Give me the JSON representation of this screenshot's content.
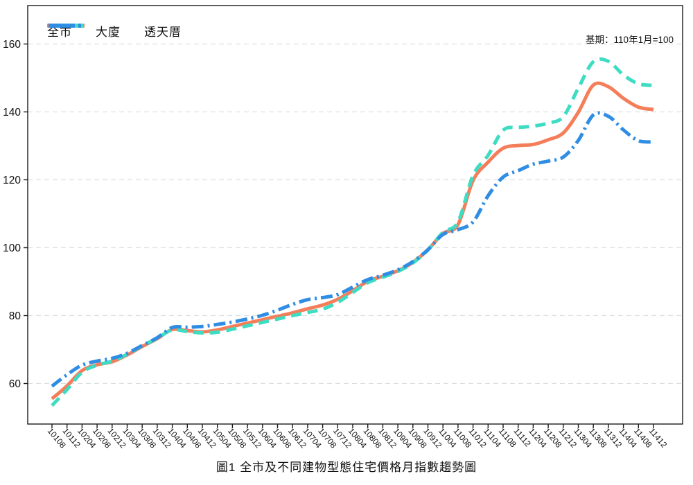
{
  "chart_data": {
    "type": "line",
    "title": "圖1 全市及不同建物型態住宅價格月指數趨勢圖",
    "note": "基期：110年1月=100",
    "grid": true,
    "legend_position": "top-left",
    "yticks": [
      60,
      80,
      100,
      120,
      140,
      160
    ],
    "ylim": [
      51,
      168
    ],
    "x_tick_labels": [
      "10108",
      "10112",
      "10204",
      "10208",
      "10212",
      "10304",
      "10308",
      "10312",
      "10404",
      "10408",
      "10412",
      "10504",
      "10508",
      "10512",
      "10604",
      "10608",
      "10612",
      "10704",
      "10708",
      "10712",
      "10804",
      "10808",
      "10812",
      "10904",
      "10908",
      "10912",
      "11004",
      "11008",
      "11012",
      "11104",
      "11108",
      "11112",
      "11204",
      "11208",
      "11212",
      "11304",
      "11308",
      "11312",
      "11404",
      "11408",
      "11412"
    ],
    "series": [
      {
        "name": "全市",
        "color": "#F57E5A",
        "style": "solid",
        "values": [
          55.5,
          59.3,
          63.8,
          65.5,
          66.4,
          68.4,
          70.9,
          73.2,
          75.9,
          75.6,
          75.2,
          75.8,
          76.8,
          77.8,
          78.8,
          79.8,
          80.8,
          82.0,
          83.1,
          84.8,
          87.3,
          90.1,
          91.6,
          93.2,
          95.7,
          99.4,
          104.2,
          106.8,
          119.8,
          125.2,
          129.3,
          130.1,
          130.4,
          131.8,
          133.8,
          139.9,
          147.9,
          147.4,
          144.0,
          141.4,
          140.7
        ]
      },
      {
        "name": "大廈",
        "color": "#3EDCC2",
        "style": "dashed",
        "values": [
          53.5,
          58.2,
          63.3,
          65.4,
          66.6,
          68.6,
          71.1,
          73.3,
          75.8,
          75.3,
          74.9,
          75.1,
          76.0,
          77.0,
          78.0,
          79.0,
          80.0,
          80.9,
          81.9,
          83.9,
          86.8,
          89.7,
          91.3,
          93.0,
          95.5,
          99.3,
          104.5,
          107.6,
          121.3,
          127.2,
          134.6,
          135.4,
          135.8,
          136.7,
          138.6,
          147.0,
          154.8,
          154.9,
          150.9,
          148.3,
          147.8
        ]
      },
      {
        "name": "透天厝",
        "color": "#2F8DE4",
        "style": "dashdot",
        "values": [
          59.2,
          62.6,
          65.4,
          66.6,
          67.4,
          68.9,
          71.2,
          73.5,
          76.5,
          76.6,
          76.8,
          77.4,
          78.1,
          79.0,
          80.1,
          81.6,
          83.3,
          84.7,
          85.3,
          86.2,
          88.4,
          90.6,
          91.9,
          93.5,
          95.9,
          99.4,
          103.9,
          105.3,
          107.6,
          115.3,
          120.8,
          122.7,
          124.6,
          125.5,
          126.7,
          131.6,
          139.1,
          138.7,
          134.7,
          131.5,
          131.2
        ]
      }
    ],
    "colors": {
      "grid": "#dcdfe2",
      "axis": "#1a1a1a",
      "text": "#111111"
    }
  }
}
